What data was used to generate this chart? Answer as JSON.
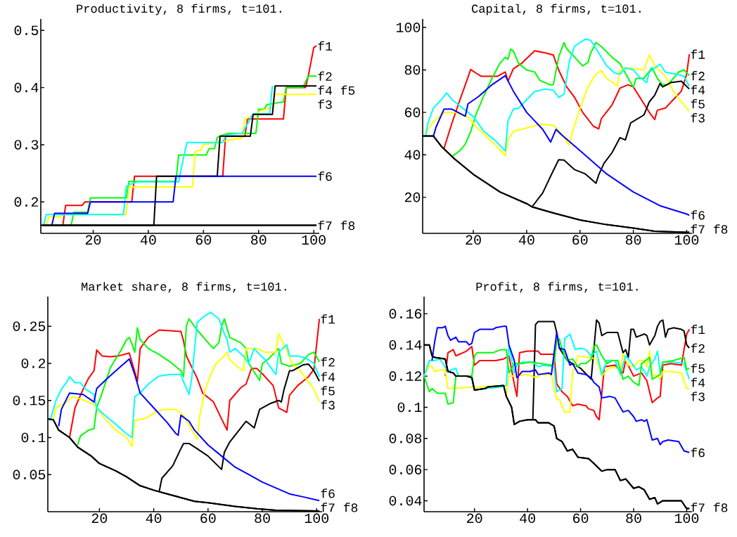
{
  "chart_data": [
    {
      "type": "line",
      "title": "Productivity, 8 firms, t=101.",
      "xlim": [
        1,
        102
      ],
      "ylim": [
        0.145,
        0.52
      ],
      "xticks": [
        20,
        40,
        60,
        80,
        100
      ],
      "yticks": [
        0.2,
        0.3,
        0.4,
        0.5
      ],
      "series": [
        {
          "name": "f1",
          "color": "#ff0000",
          "x": [
            9,
            10,
            16,
            17,
            34,
            35,
            67,
            68,
            75,
            76,
            89,
            90,
            97,
            98,
            100,
            101
          ],
          "values": [
            0.159,
            0.194,
            0.194,
            0.2,
            0.2,
            0.245,
            0.245,
            0.315,
            0.315,
            0.345,
            0.345,
            0.4,
            0.4,
            0.42,
            0.47,
            0.473
          ]
        },
        {
          "name": "f2",
          "color": "#00ff00",
          "x": [
            12,
            13,
            18,
            19,
            32,
            33,
            50,
            51,
            61,
            62,
            64,
            65,
            67,
            69,
            79,
            80,
            82,
            83,
            85,
            89,
            90,
            96,
            98,
            101
          ],
          "values": [
            0.159,
            0.182,
            0.182,
            0.207,
            0.207,
            0.236,
            0.236,
            0.282,
            0.282,
            0.293,
            0.293,
            0.313,
            0.317,
            0.32,
            0.32,
            0.362,
            0.362,
            0.37,
            0.372,
            0.375,
            0.4,
            0.4,
            0.42,
            0.42
          ]
        },
        {
          "name": "f3",
          "color": "#ffff00",
          "x": [
            3,
            4,
            8,
            9,
            32,
            33,
            56,
            57,
            59,
            60,
            74,
            75,
            81,
            85,
            86,
            101
          ],
          "values": [
            0.159,
            0.174,
            0.174,
            0.178,
            0.178,
            0.226,
            0.226,
            0.289,
            0.29,
            0.3,
            0.312,
            0.344,
            0.36,
            0.365,
            0.388,
            0.388
          ]
        },
        {
          "name": "f4",
          "color": "#00ffff",
          "x": [
            2,
            3,
            31,
            32,
            33,
            36,
            51,
            52,
            54,
            67,
            68,
            69,
            74,
            78,
            84,
            85
          ],
          "values": [
            0.159,
            0.178,
            0.178,
            0.227,
            0.23,
            0.235,
            0.235,
            0.26,
            0.304,
            0.304,
            0.315,
            0.318,
            0.32,
            0.354,
            0.354,
            0.403
          ]
        },
        {
          "name": "f5",
          "color": "#000000",
          "x": [
            2,
            42,
            43,
            65,
            66,
            77,
            78,
            85,
            86,
            101
          ],
          "values": [
            0.159,
            0.159,
            0.245,
            0.245,
            0.315,
            0.315,
            0.353,
            0.353,
            0.403,
            0.403
          ]
        },
        {
          "name": "f6",
          "color": "#0000ff",
          "x": [
            5,
            6,
            18,
            19,
            49,
            50,
            101
          ],
          "values": [
            0.159,
            0.18,
            0.18,
            0.2,
            0.2,
            0.245,
            0.245
          ]
        },
        {
          "name": "f7",
          "color": "#000000",
          "x": [
            1,
            101
          ],
          "values": [
            0.159,
            0.159
          ]
        },
        {
          "name": "f8",
          "color": "#000000",
          "x": [
            1,
            101
          ],
          "values": [
            0.159,
            0.159
          ]
        }
      ]
    },
    {
      "type": "line",
      "title": "Capital, 8 firms, t=101.",
      "xlim": [
        1,
        102
      ],
      "ylim": [
        3,
        104
      ],
      "xticks": [
        20,
        40,
        60,
        80,
        100
      ],
      "yticks": [
        20,
        40,
        60,
        80,
        100
      ],
      "series": [
        {
          "name": "f1",
          "color": "#ff0000",
          "x": [
            9,
            12,
            15,
            17,
            19,
            21,
            23,
            29,
            32,
            33,
            35,
            38,
            43,
            47,
            50,
            52,
            55,
            58,
            61,
            65,
            67,
            68,
            72,
            75,
            78,
            80,
            83,
            86,
            88,
            89,
            92,
            95,
            98,
            100,
            101
          ],
          "values": [
            43,
            55,
            66,
            73,
            80.2,
            78.5,
            77,
            77,
            79,
            74.7,
            80.5,
            83,
            89,
            88,
            87,
            80,
            72,
            67,
            60,
            53.5,
            52.2,
            57,
            63.5,
            71.4,
            73,
            72,
            66,
            60,
            56.6,
            61,
            62,
            66,
            70,
            78,
            87.4
          ]
        },
        {
          "name": "f2",
          "color": "#00ff00",
          "x": [
            12,
            15,
            17,
            19,
            21,
            24,
            27,
            30,
            32,
            33,
            34,
            35,
            37,
            40,
            43,
            45,
            49,
            50,
            52,
            54,
            55,
            58,
            61,
            63,
            64,
            66,
            68,
            72,
            75,
            80,
            81,
            84,
            87,
            89,
            91,
            93,
            97,
            99,
            101
          ],
          "values": [
            39.2,
            42,
            45,
            51,
            59,
            68,
            76,
            83.2,
            86,
            85,
            89.8,
            89,
            83,
            80,
            79,
            75,
            72.9,
            73,
            86,
            92.9,
            90,
            86,
            81.9,
            83.5,
            88,
            92.9,
            91,
            86,
            83,
            71.8,
            76,
            76,
            81,
            76,
            73,
            73,
            79,
            80,
            77.3
          ]
        },
        {
          "name": "f3",
          "color": "#ffff00",
          "x": [
            2,
            3,
            5,
            9,
            13,
            18,
            22,
            28,
            32,
            33,
            35,
            40,
            45,
            50,
            53,
            56,
            57,
            60,
            63,
            66,
            68,
            70,
            74,
            75,
            78,
            84,
            86,
            88,
            92,
            95,
            98,
            101
          ],
          "values": [
            48.9,
            52,
            55.5,
            59.9,
            60,
            57.7,
            52,
            45,
            39.6,
            47,
            51,
            52.7,
            54.4,
            54,
            50,
            44.5,
            50,
            62,
            72,
            78,
            79.7,
            76,
            72.5,
            80,
            81,
            80,
            87.1,
            82,
            77,
            70,
            65,
            60.4
          ]
        },
        {
          "name": "f4",
          "color": "#00ffff",
          "x": [
            2,
            3,
            5,
            8,
            10,
            12,
            15,
            20,
            24,
            28,
            32,
            33,
            35,
            37,
            40,
            43,
            47,
            50,
            52,
            54,
            56,
            58,
            62,
            64,
            67,
            70,
            73,
            75,
            77,
            80,
            82,
            85,
            86,
            90,
            92,
            96,
            99,
            101
          ],
          "values": [
            48.5,
            55,
            62,
            66,
            69.2,
            66,
            63,
            58,
            51,
            47,
            41.8,
            56,
            61.5,
            62,
            66,
            69.8,
            71,
            70.5,
            67,
            68.5,
            84,
            91.2,
            94.5,
            94,
            88,
            82,
            78.5,
            78,
            81,
            80,
            77,
            74,
            79,
            82.7,
            79,
            78,
            77,
            72.2
          ]
        },
        {
          "name": "f5",
          "color": "#000000",
          "x": [
            42,
            46,
            49,
            52,
            54,
            58,
            62,
            66,
            67,
            69,
            72,
            75,
            77,
            79,
            84,
            86,
            88,
            90,
            91,
            94,
            98,
            101
          ],
          "values": [
            15.5,
            22,
            30,
            37.7,
            37.5,
            33,
            31,
            26.6,
            30.5,
            36,
            41,
            48.1,
            47,
            55,
            58.8,
            65,
            68,
            73.6,
            72,
            74,
            74.7,
            71
          ]
        },
        {
          "name": "f6",
          "color": "#0000ff",
          "x": [
            5,
            6,
            9,
            12,
            17,
            18,
            22,
            27,
            32,
            35,
            40,
            46,
            49,
            51,
            53,
            60,
            70,
            80,
            90,
            100,
            101
          ],
          "values": [
            48.5,
            53,
            61.5,
            61.5,
            58.2,
            64,
            67.5,
            73,
            77.3,
            70,
            60,
            52,
            46,
            52,
            49.5,
            42,
            31,
            22.5,
            16,
            12.1,
            11.5
          ]
        },
        {
          "name": "f7",
          "color": "#000000",
          "x": [
            1,
            5,
            8,
            13,
            20,
            30,
            40,
            42,
            50,
            60,
            70,
            80,
            88,
            100,
            101
          ],
          "values": [
            48.9,
            48.9,
            44,
            38,
            30.8,
            22.5,
            17,
            15.5,
            12.6,
            9.3,
            7.1,
            5.5,
            4,
            3.5,
            3.5
          ]
        },
        {
          "name": "f8",
          "color": "#000000",
          "x": [
            1,
            5,
            8,
            13,
            20,
            30,
            40,
            42,
            50,
            60,
            70,
            80,
            88,
            100,
            101
          ],
          "values": [
            48.9,
            48.9,
            44,
            38,
            30.8,
            22.5,
            17,
            15.5,
            12.6,
            9.3,
            7.1,
            5.5,
            4,
            3.5,
            3.5
          ]
        }
      ]
    },
    {
      "type": "line",
      "title": "Market share, 8 firms, t=101.",
      "xlim": [
        1,
        102
      ],
      "ylim": [
        0,
        0.29
      ],
      "xticks": [
        20,
        40,
        60,
        80,
        100
      ],
      "yticks": [
        0.05,
        0.1,
        0.15,
        0.2,
        0.25
      ],
      "series": [
        {
          "name": "f1",
          "color": "#ff0000",
          "x": [
            9,
            11,
            14,
            16,
            18,
            19,
            21,
            24,
            27,
            31,
            34,
            35,
            38,
            42,
            46,
            50,
            51,
            52,
            56,
            58,
            62,
            65,
            67,
            68,
            72,
            74,
            76,
            78,
            80,
            84,
            86,
            89,
            90,
            93,
            97,
            99,
            101
          ],
          "values": [
            0.1,
            0.14,
            0.165,
            0.18,
            0.19,
            0.218,
            0.21,
            0.209,
            0.21,
            0.214,
            0.176,
            0.22,
            0.235,
            0.245,
            0.244,
            0.243,
            0.23,
            0.21,
            0.18,
            0.16,
            0.148,
            0.125,
            0.11,
            0.15,
            0.167,
            0.172,
            0.193,
            0.193,
            0.186,
            0.17,
            0.14,
            0.134,
            0.157,
            0.17,
            0.182,
            0.192,
            0.26
          ]
        },
        {
          "name": "f2",
          "color": "#00ff00",
          "x": [
            12,
            13,
            16,
            18,
            19,
            21,
            24,
            28,
            30,
            31,
            32,
            33,
            34,
            35,
            38,
            42,
            46,
            50,
            51,
            52,
            53,
            56,
            60,
            62,
            64,
            65,
            66,
            68,
            72,
            74,
            75,
            79,
            80,
            82,
            86,
            87,
            90,
            94,
            97,
            99,
            101
          ],
          "values": [
            0.09,
            0.102,
            0.11,
            0.112,
            0.14,
            0.16,
            0.194,
            0.218,
            0.232,
            0.235,
            0.226,
            0.215,
            0.248,
            0.232,
            0.22,
            0.212,
            0.202,
            0.19,
            0.182,
            0.25,
            0.26,
            0.245,
            0.228,
            0.22,
            0.228,
            0.25,
            0.26,
            0.235,
            0.228,
            0.22,
            0.2,
            0.177,
            0.2,
            0.205,
            0.22,
            0.2,
            0.196,
            0.2,
            0.212,
            0.215,
            0.202
          ]
        },
        {
          "name": "f3",
          "color": "#ffff00",
          "x": [
            3,
            4,
            7,
            10,
            13,
            18,
            22,
            26,
            30,
            32,
            33,
            37,
            41,
            44,
            48,
            51,
            54,
            56,
            57,
            59,
            61,
            63,
            66,
            67,
            68,
            71,
            73,
            74,
            78,
            81,
            85,
            86,
            88,
            91,
            94,
            97,
            99,
            101
          ],
          "values": [
            0.125,
            0.14,
            0.145,
            0.155,
            0.152,
            0.145,
            0.125,
            0.11,
            0.1,
            0.088,
            0.123,
            0.126,
            0.135,
            0.138,
            0.138,
            0.13,
            0.11,
            0.098,
            0.13,
            0.165,
            0.185,
            0.2,
            0.21,
            0.215,
            0.205,
            0.195,
            0.19,
            0.22,
            0.22,
            0.215,
            0.215,
            0.24,
            0.225,
            0.2,
            0.19,
            0.175,
            0.165,
            0.148
          ]
        },
        {
          "name": "f4",
          "color": "#00ffff",
          "x": [
            2,
            4,
            6,
            8,
            9,
            11,
            13,
            15,
            18,
            19,
            22,
            26,
            30,
            32,
            33,
            35,
            38,
            42,
            46,
            50,
            51,
            53,
            54,
            56,
            58,
            61,
            64,
            66,
            67,
            68,
            70,
            73,
            75,
            77,
            79,
            81,
            85,
            86,
            89,
            90,
            93,
            96,
            99,
            101
          ],
          "values": [
            0.125,
            0.15,
            0.165,
            0.175,
            0.182,
            0.174,
            0.174,
            0.165,
            0.158,
            0.14,
            0.13,
            0.118,
            0.105,
            0.1,
            0.155,
            0.16,
            0.172,
            0.183,
            0.185,
            0.185,
            0.175,
            0.158,
            0.18,
            0.255,
            0.262,
            0.269,
            0.26,
            0.24,
            0.232,
            0.215,
            0.22,
            0.21,
            0.2,
            0.22,
            0.212,
            0.205,
            0.185,
            0.215,
            0.225,
            0.21,
            0.21,
            0.207,
            0.2,
            0.182
          ]
        },
        {
          "name": "f5",
          "color": "#000000",
          "x": [
            42,
            43,
            47,
            50,
            51,
            53,
            56,
            60,
            65,
            66,
            68,
            71,
            74,
            77,
            79,
            83,
            86,
            87,
            88,
            90,
            91,
            95,
            97,
            99,
            101
          ],
          "values": [
            0.027,
            0.045,
            0.062,
            0.085,
            0.092,
            0.092,
            0.085,
            0.075,
            0.057,
            0.08,
            0.094,
            0.108,
            0.122,
            0.113,
            0.138,
            0.146,
            0.15,
            0.148,
            0.165,
            0.19,
            0.19,
            0.198,
            0.199,
            0.19,
            0.176
          ]
        },
        {
          "name": "f6",
          "color": "#0000ff",
          "x": [
            5,
            6,
            9,
            14,
            18,
            19,
            23,
            27,
            31,
            33,
            35,
            40,
            45,
            48,
            49,
            50,
            53,
            55,
            60,
            65,
            70,
            75,
            80,
            85,
            90,
            95,
            101
          ],
          "values": [
            0.115,
            0.138,
            0.16,
            0.158,
            0.148,
            0.166,
            0.18,
            0.193,
            0.206,
            0.185,
            0.16,
            0.14,
            0.12,
            0.106,
            0.103,
            0.13,
            0.122,
            0.11,
            0.09,
            0.075,
            0.06,
            0.05,
            0.04,
            0.032,
            0.024,
            0.02,
            0.015
          ]
        },
        {
          "name": "f7",
          "color": "#000000",
          "x": [
            1,
            3,
            5,
            9,
            12,
            17,
            20,
            26,
            30,
            35,
            40,
            45,
            50,
            55,
            60,
            70,
            78,
            85,
            101
          ],
          "values": [
            0.125,
            0.124,
            0.11,
            0.1,
            0.087,
            0.075,
            0.065,
            0.055,
            0.047,
            0.035,
            0.029,
            0.024,
            0.019,
            0.014,
            0.012,
            0.007,
            0.004,
            0.002,
            0.001
          ]
        },
        {
          "name": "f8",
          "color": "#000000",
          "x": [
            1,
            3,
            5,
            9,
            12,
            17,
            20,
            26,
            30,
            35,
            40,
            45,
            50,
            55,
            60,
            70,
            78,
            85,
            101
          ],
          "values": [
            0.125,
            0.124,
            0.11,
            0.1,
            0.087,
            0.075,
            0.065,
            0.055,
            0.047,
            0.035,
            0.029,
            0.024,
            0.019,
            0.014,
            0.012,
            0.007,
            0.004,
            0.002,
            0.001
          ]
        }
      ]
    },
    {
      "type": "line",
      "title": "Profit, 8 firms, t=101.",
      "xlim": [
        1,
        102
      ],
      "ylim": [
        0.033,
        0.171
      ],
      "xticks": [
        20,
        40,
        60,
        80,
        100
      ],
      "yticks": [
        0.04,
        0.06,
        0.08,
        0.1,
        0.12,
        0.14,
        0.16
      ],
      "series": [
        {
          "name": "f1",
          "color": "#ff0000",
          "x": [
            9,
            10,
            12,
            13,
            17,
            19,
            20,
            22,
            28,
            31,
            33,
            35,
            36,
            37,
            40,
            44,
            45,
            50,
            51,
            53,
            55,
            57,
            59,
            62,
            63,
            65,
            66,
            67,
            69,
            73,
            76,
            77,
            80,
            83,
            85,
            87,
            89,
            90,
            91,
            94,
            98,
            100,
            101
          ],
          "values": [
            0.12,
            0.135,
            0.137,
            0.133,
            0.136,
            0.139,
            0.127,
            0.13,
            0.13,
            0.131,
            0.133,
            0.115,
            0.107,
            0.135,
            0.136,
            0.136,
            0.134,
            0.134,
            0.115,
            0.11,
            0.107,
            0.101,
            0.102,
            0.101,
            0.099,
            0.098,
            0.094,
            0.092,
            0.126,
            0.127,
            0.122,
            0.13,
            0.12,
            0.122,
            0.117,
            0.103,
            0.106,
            0.107,
            0.127,
            0.128,
            0.127,
            0.147,
            0.15
          ]
        },
        {
          "name": "f2",
          "color": "#000000",
          "x": [
            42,
            43,
            44,
            50,
            51,
            52,
            55,
            60,
            64,
            66,
            67,
            68,
            70,
            74,
            76,
            77,
            78,
            79,
            80,
            81,
            84,
            85,
            86,
            88,
            89,
            90,
            91,
            92,
            93,
            95,
            98,
            99,
            100,
            101
          ],
          "values": [
            0.092,
            0.153,
            0.155,
            0.155,
            0.148,
            0.138,
            0.13,
            0.125,
            0.118,
            0.156,
            0.154,
            0.146,
            0.148,
            0.148,
            0.135,
            0.137,
            0.132,
            0.15,
            0.15,
            0.145,
            0.147,
            0.146,
            0.14,
            0.146,
            0.152,
            0.155,
            0.156,
            0.145,
            0.15,
            0.151,
            0.15,
            0.149,
            0.14,
            0.138
          ]
        },
        {
          "name": "f3",
          "color": "#ffff00",
          "x": [
            1,
            3,
            4,
            5,
            7,
            9,
            10,
            31,
            32,
            33,
            35,
            40,
            43,
            45,
            49,
            51,
            52,
            54,
            56,
            57,
            58,
            59,
            63,
            66,
            68,
            70,
            72,
            75,
            76,
            78,
            80,
            82,
            84,
            85,
            86,
            87,
            89,
            90,
            91,
            94,
            98,
            100,
            101
          ],
          "values": [
            0.12,
            0.127,
            0.126,
            0.123,
            0.124,
            0.124,
            0.112,
            0.114,
            0.107,
            0.12,
            0.12,
            0.121,
            0.119,
            0.121,
            0.121,
            0.105,
            0.105,
            0.097,
            0.097,
            0.122,
            0.127,
            0.133,
            0.132,
            0.131,
            0.12,
            0.124,
            0.126,
            0.124,
            0.134,
            0.127,
            0.126,
            0.13,
            0.13,
            0.126,
            0.136,
            0.121,
            0.12,
            0.118,
            0.123,
            0.123,
            0.122,
            0.112,
            0.112
          ]
        },
        {
          "name": "f4",
          "color": "#00ffff",
          "x": [
            1,
            3,
            5,
            7,
            10,
            13,
            14,
            19,
            20,
            24,
            30,
            32,
            33,
            35,
            36,
            38,
            42,
            44,
            46,
            50,
            51,
            53,
            54,
            56,
            58,
            60,
            62,
            64,
            66,
            68,
            70,
            73,
            75,
            77,
            79,
            81,
            83,
            85,
            86,
            88,
            89,
            90,
            91,
            95,
            99,
            101
          ],
          "values": [
            0.12,
            0.13,
            0.13,
            0.131,
            0.123,
            0.125,
            0.12,
            0.12,
            0.111,
            0.112,
            0.113,
            0.114,
            0.14,
            0.122,
            0.127,
            0.129,
            0.129,
            0.126,
            0.127,
            0.126,
            0.11,
            0.112,
            0.144,
            0.147,
            0.137,
            0.138,
            0.137,
            0.133,
            0.136,
            0.121,
            0.13,
            0.13,
            0.121,
            0.133,
            0.129,
            0.124,
            0.126,
            0.12,
            0.126,
            0.131,
            0.136,
            0.122,
            0.129,
            0.129,
            0.128,
            0.118
          ]
        },
        {
          "name": "f5",
          "color": "#00ff00",
          "x": [
            1,
            3,
            4,
            6,
            9,
            10,
            12,
            13,
            19,
            20,
            21,
            27,
            30,
            32,
            33,
            35,
            38,
            41,
            45,
            49,
            50,
            51,
            52,
            53,
            55,
            57,
            59,
            60,
            62,
            64,
            65,
            66,
            68,
            70,
            72,
            74,
            76,
            78,
            80,
            82,
            83,
            86,
            87,
            90,
            91,
            95,
            97,
            99,
            100,
            101
          ],
          "values": [
            0.12,
            0.11,
            0.112,
            0.109,
            0.109,
            0.102,
            0.103,
            0.12,
            0.12,
            0.133,
            0.135,
            0.135,
            0.137,
            0.137,
            0.122,
            0.128,
            0.128,
            0.129,
            0.128,
            0.127,
            0.128,
            0.143,
            0.144,
            0.137,
            0.13,
            0.131,
            0.126,
            0.128,
            0.128,
            0.131,
            0.139,
            0.14,
            0.133,
            0.128,
            0.13,
            0.13,
            0.118,
            0.12,
            0.116,
            0.114,
            0.128,
            0.132,
            0.118,
            0.121,
            0.129,
            0.13,
            0.131,
            0.132,
            0.124,
            0.125
          ]
        },
        {
          "name": "f6",
          "color": "#0000ff",
          "x": [
            4,
            5,
            6,
            8,
            9,
            10,
            11,
            13,
            14,
            17,
            18,
            19,
            20,
            22,
            27,
            28,
            31,
            32,
            33,
            35,
            36,
            38,
            41,
            43,
            44,
            48,
            49,
            51,
            52,
            54,
            56,
            57,
            59,
            62,
            64,
            65,
            67,
            68,
            71,
            73,
            75,
            76,
            78,
            80,
            81,
            83,
            84,
            85,
            87,
            89,
            90,
            91,
            93,
            97,
            99,
            101
          ],
          "values": [
            0.13,
            0.142,
            0.151,
            0.151,
            0.152,
            0.146,
            0.143,
            0.145,
            0.142,
            0.142,
            0.14,
            0.141,
            0.148,
            0.15,
            0.15,
            0.151,
            0.152,
            0.152,
            0.14,
            0.13,
            0.119,
            0.123,
            0.123,
            0.124,
            0.121,
            0.122,
            0.121,
            0.148,
            0.138,
            0.137,
            0.127,
            0.128,
            0.122,
            0.121,
            0.119,
            0.116,
            0.113,
            0.106,
            0.107,
            0.106,
            0.1,
            0.097,
            0.098,
            0.094,
            0.091,
            0.092,
            0.091,
            0.092,
            0.079,
            0.08,
            0.076,
            0.078,
            0.079,
            0.078,
            0.072,
            0.071
          ]
        },
        {
          "name": "f7",
          "color": "#000000",
          "x": [
            1,
            3,
            4,
            5,
            9,
            10,
            12,
            13,
            17,
            19,
            20,
            24,
            25,
            31,
            32,
            34,
            35,
            37,
            40,
            43,
            44,
            48,
            50,
            51,
            53,
            55,
            57,
            59,
            63,
            65,
            68,
            70,
            73,
            75,
            77,
            80,
            82,
            84,
            86,
            88,
            89,
            91,
            98,
            100,
            101
          ],
          "values": [
            0.14,
            0.14,
            0.133,
            0.132,
            0.131,
            0.123,
            0.122,
            0.12,
            0.12,
            0.119,
            0.111,
            0.112,
            0.113,
            0.114,
            0.107,
            0.1,
            0.089,
            0.091,
            0.092,
            0.092,
            0.09,
            0.09,
            0.088,
            0.08,
            0.078,
            0.072,
            0.073,
            0.068,
            0.067,
            0.064,
            0.059,
            0.06,
            0.06,
            0.053,
            0.054,
            0.048,
            0.049,
            0.047,
            0.041,
            0.042,
            0.038,
            0.04,
            0.04,
            0.035,
            0.035
          ]
        },
        {
          "name": "f8",
          "color": "#000000",
          "x": [
            1,
            3,
            4,
            5,
            9,
            10,
            12,
            13,
            17,
            19,
            20,
            24,
            25,
            31,
            32,
            34,
            35,
            37,
            40,
            43,
            44,
            48,
            50,
            51,
            53,
            55,
            57,
            59,
            63,
            65,
            68,
            70,
            73,
            75,
            77,
            80,
            82,
            84,
            86,
            88,
            89,
            91,
            98,
            100,
            101
          ],
          "values": [
            0.14,
            0.14,
            0.133,
            0.132,
            0.131,
            0.123,
            0.122,
            0.12,
            0.12,
            0.119,
            0.111,
            0.112,
            0.113,
            0.114,
            0.107,
            0.1,
            0.089,
            0.091,
            0.092,
            0.092,
            0.09,
            0.09,
            0.088,
            0.08,
            0.078,
            0.072,
            0.073,
            0.068,
            0.067,
            0.064,
            0.059,
            0.06,
            0.06,
            0.053,
            0.054,
            0.048,
            0.049,
            0.047,
            0.041,
            0.042,
            0.038,
            0.04,
            0.04,
            0.035,
            0.035
          ]
        }
      ]
    }
  ]
}
